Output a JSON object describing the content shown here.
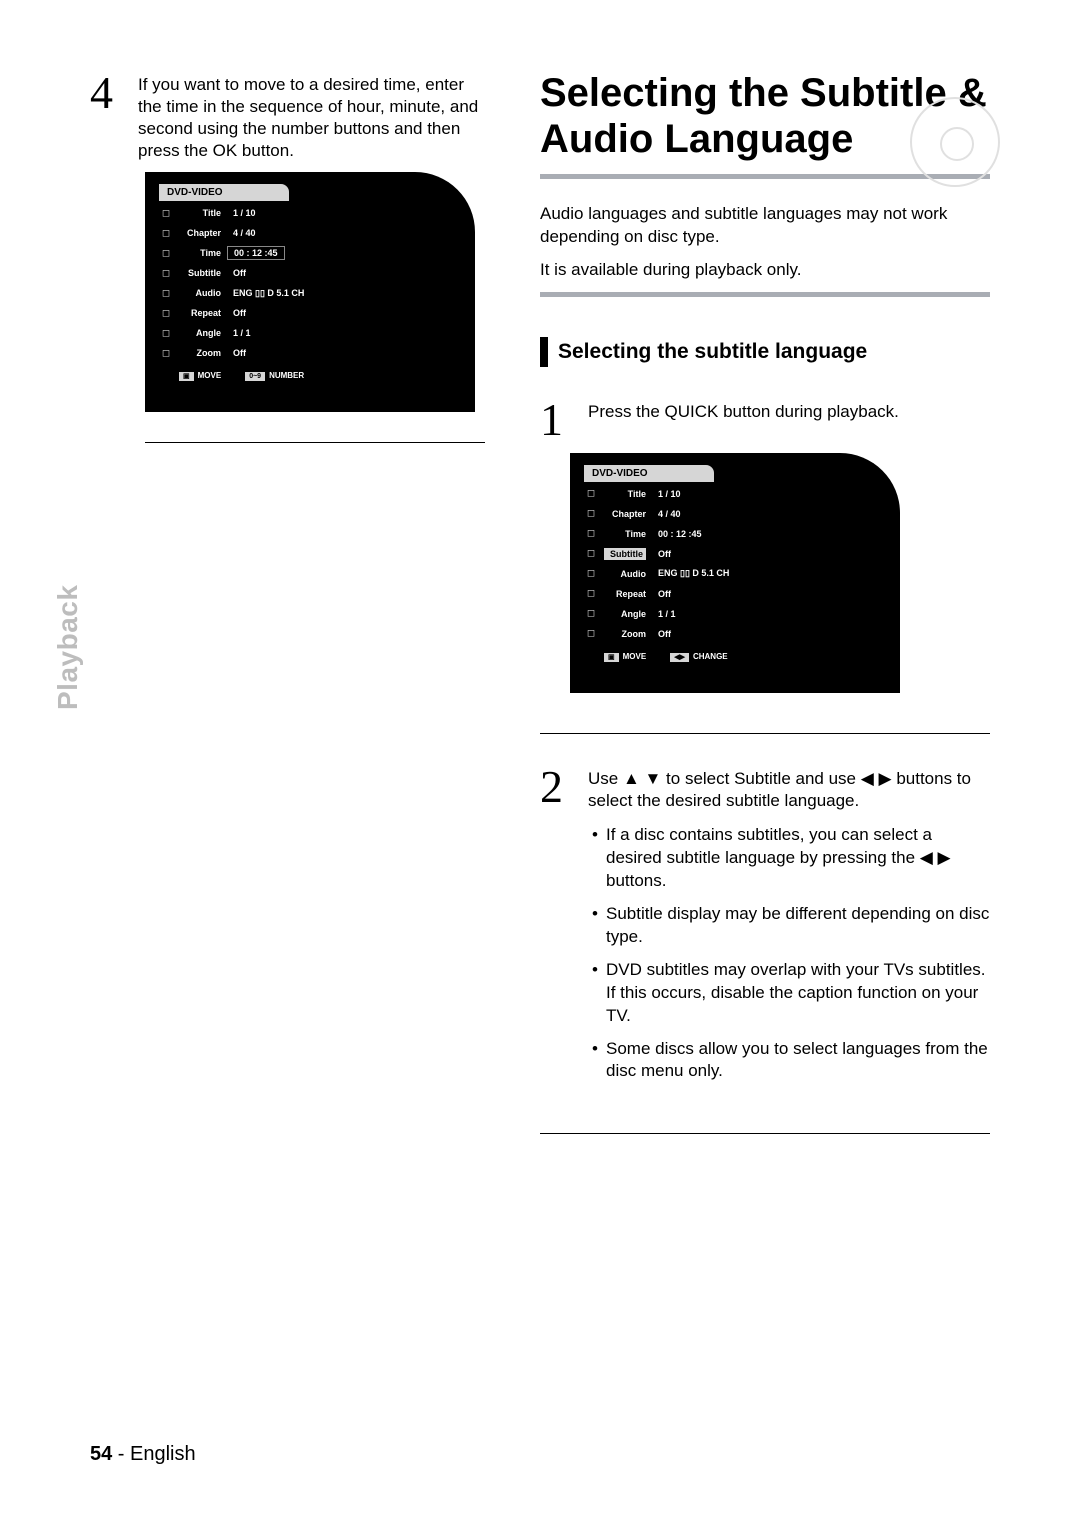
{
  "leftCol": {
    "step4": {
      "num": "4",
      "text": "If you want to move to a desired time, enter the time in the sequence of hour, minute, and second using the number buttons and then press the OK button."
    },
    "osd": {
      "header": "DVD-VIDEO",
      "rows": [
        {
          "label": "Title",
          "value": "1 / 10"
        },
        {
          "label": "Chapter",
          "value": "4 / 40"
        },
        {
          "label": "Time",
          "value": "00 : 12 :45",
          "boxed": true
        },
        {
          "label": "Subtitle",
          "value": "Off"
        },
        {
          "label": "Audio",
          "value": "ENG ▯▯ D 5.1 CH"
        },
        {
          "label": "Repeat",
          "value": "Off"
        },
        {
          "label": "Angle",
          "value": "1 / 1"
        },
        {
          "label": "Zoom",
          "value": "Off"
        }
      ],
      "footer": [
        {
          "key": "▣",
          "label": "MOVE"
        },
        {
          "key": "0~9",
          "label": "NUMBER"
        }
      ]
    }
  },
  "rightCol": {
    "title": "Selecting the Subtitle & Audio Language",
    "intro1": "Audio languages and subtitle languages may not work depending on disc type.",
    "intro2": "It is available during playback only.",
    "sectionTitle": "Selecting the subtitle language",
    "step1": {
      "num": "1",
      "text": "Press the QUICK button during playback."
    },
    "osd": {
      "header": "DVD-VIDEO",
      "rows": [
        {
          "label": "Title",
          "value": "1 / 10"
        },
        {
          "label": "Chapter",
          "value": "4 / 40"
        },
        {
          "label": "Time",
          "value": "00 : 12 :45"
        },
        {
          "label": "Subtitle",
          "value": "Off",
          "highlight": true
        },
        {
          "label": "Audio",
          "value": "ENG ▯▯ D 5.1 CH"
        },
        {
          "label": "Repeat",
          "value": "Off"
        },
        {
          "label": "Angle",
          "value": "1 / 1"
        },
        {
          "label": "Zoom",
          "value": "Off"
        }
      ],
      "footer": [
        {
          "key": "▣",
          "label": "MOVE"
        },
        {
          "key": "◀▶",
          "label": "CHANGE"
        }
      ]
    },
    "step2": {
      "num": "2",
      "text": "Use ▲ ▼ to select Subtitle and use ◀ ▶ buttons to select the desired subtitle language.",
      "bullets": [
        "If a disc contains subtitles, you can select a desired subtitle language by pressing the ◀ ▶ buttons.",
        "Subtitle display may be different depending on disc type.",
        "DVD subtitles may overlap with your TVs subtitles. If this occurs, disable the caption function on your TV.",
        "Some discs allow you to select languages from the disc menu only."
      ]
    }
  },
  "sideTab": "Playback",
  "footer": {
    "page": "54",
    "sep": " - ",
    "lang": "English"
  }
}
